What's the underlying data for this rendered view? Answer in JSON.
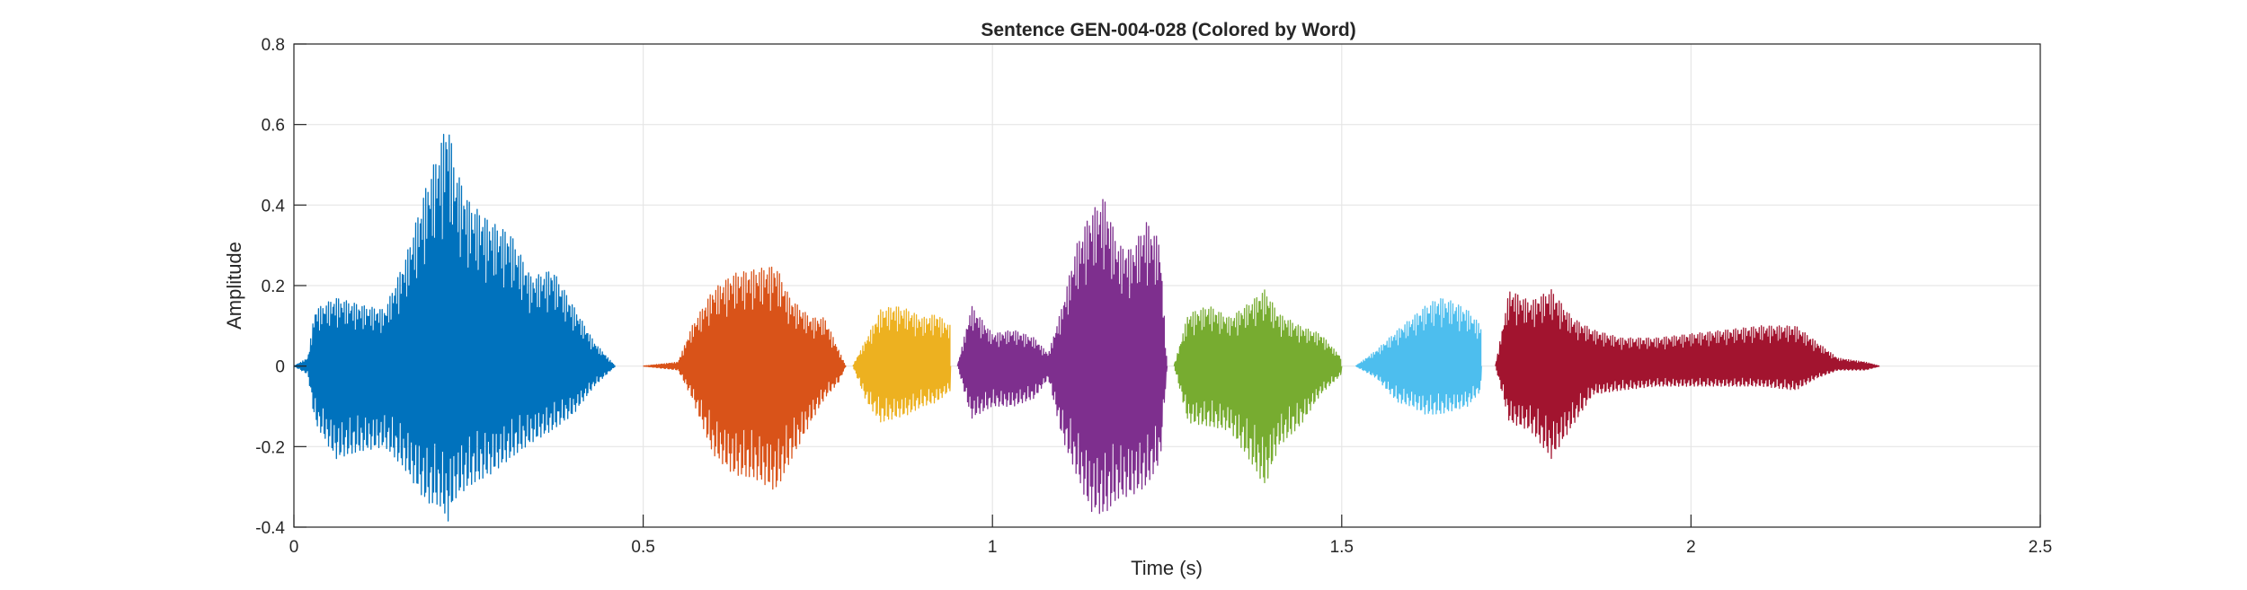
{
  "chart_data": {
    "type": "line",
    "title": "Sentence GEN-004-028 (Colored by Word)",
    "xlabel": "Time (s)",
    "ylabel": "Amplitude",
    "xlim": [
      0,
      2.5
    ],
    "ylim": [
      -0.4,
      0.8
    ],
    "xticks": [
      0,
      0.5,
      1,
      1.5,
      2,
      2.5
    ],
    "xtick_labels": [
      "0",
      "0.5",
      "1",
      "1.5",
      "2",
      "2.5"
    ],
    "yticks": [
      -0.4,
      -0.2,
      0,
      0.2,
      0.4,
      0.6,
      0.8
    ],
    "ytick_labels": [
      "-0.4",
      "-0.2",
      "0",
      "0.2",
      "0.4",
      "0.6",
      "0.8"
    ],
    "grid": true,
    "series": [
      {
        "color": "#0072BD",
        "x": [
          0.0,
          0.02,
          0.03,
          0.06,
          0.1,
          0.13,
          0.16,
          0.19,
          0.21,
          0.22,
          0.23,
          0.25,
          0.28,
          0.31,
          0.34,
          0.37,
          0.4,
          0.43,
          0.46
        ],
        "upper": [
          0.0,
          0.02,
          0.14,
          0.17,
          0.15,
          0.14,
          0.27,
          0.45,
          0.55,
          0.62,
          0.5,
          0.41,
          0.36,
          0.33,
          0.22,
          0.24,
          0.15,
          0.06,
          0.0
        ],
        "lower": [
          0.0,
          -0.02,
          -0.14,
          -0.23,
          -0.21,
          -0.2,
          -0.26,
          -0.34,
          -0.35,
          -0.39,
          -0.33,
          -0.3,
          -0.27,
          -0.23,
          -0.19,
          -0.16,
          -0.12,
          -0.05,
          0.0
        ]
      },
      {
        "color": "#D95319",
        "x": [
          0.5,
          0.55,
          0.57,
          0.6,
          0.63,
          0.66,
          0.69,
          0.71,
          0.74,
          0.76,
          0.78,
          0.79
        ],
        "upper": [
          0.0,
          0.01,
          0.1,
          0.19,
          0.23,
          0.24,
          0.25,
          0.17,
          0.12,
          0.12,
          0.04,
          0.0
        ],
        "lower": [
          0.0,
          -0.01,
          -0.08,
          -0.22,
          -0.27,
          -0.28,
          -0.31,
          -0.24,
          -0.14,
          -0.08,
          -0.04,
          0.0
        ]
      },
      {
        "color": "#EDB120",
        "x": [
          0.8,
          0.82,
          0.84,
          0.86,
          0.88,
          0.9,
          0.92,
          0.94
        ],
        "upper": [
          0.0,
          0.07,
          0.14,
          0.15,
          0.14,
          0.12,
          0.13,
          0.1
        ],
        "lower": [
          0.0,
          -0.09,
          -0.14,
          -0.13,
          -0.12,
          -0.1,
          -0.09,
          -0.06
        ]
      },
      {
        "color": "#7E2F8E",
        "x": [
          0.95,
          0.97,
          1.0,
          1.03,
          1.06,
          1.08,
          1.1,
          1.12,
          1.14,
          1.16,
          1.18,
          1.2,
          1.22,
          1.24,
          1.25
        ],
        "upper": [
          0.0,
          0.15,
          0.08,
          0.09,
          0.07,
          0.03,
          0.15,
          0.3,
          0.38,
          0.42,
          0.3,
          0.29,
          0.36,
          0.31,
          0.0
        ],
        "lower": [
          0.0,
          -0.13,
          -0.1,
          -0.1,
          -0.08,
          -0.03,
          -0.18,
          -0.27,
          -0.36,
          -0.37,
          -0.33,
          -0.32,
          -0.3,
          -0.24,
          0.0
        ]
      },
      {
        "color": "#77AC30",
        "x": [
          1.26,
          1.28,
          1.31,
          1.34,
          1.37,
          1.39,
          1.41,
          1.44,
          1.47,
          1.5
        ],
        "upper": [
          0.0,
          0.13,
          0.15,
          0.12,
          0.16,
          0.19,
          0.13,
          0.1,
          0.08,
          0.02
        ],
        "lower": [
          0.0,
          -0.14,
          -0.15,
          -0.16,
          -0.24,
          -0.3,
          -0.2,
          -0.15,
          -0.07,
          -0.02
        ]
      },
      {
        "color": "#4DBEEE",
        "x": [
          1.52,
          1.55,
          1.58,
          1.6,
          1.62,
          1.64,
          1.66,
          1.68,
          1.7
        ],
        "upper": [
          0.0,
          0.04,
          0.09,
          0.12,
          0.15,
          0.17,
          0.16,
          0.14,
          0.1
        ],
        "lower": [
          0.0,
          -0.03,
          -0.09,
          -0.1,
          -0.12,
          -0.12,
          -0.11,
          -0.1,
          -0.06
        ]
      },
      {
        "color": "#A2142F",
        "x": [
          1.72,
          1.74,
          1.77,
          1.8,
          1.83,
          1.86,
          1.9,
          1.95,
          2.0,
          2.05,
          2.1,
          2.15,
          2.18,
          2.21,
          2.25,
          2.27
        ],
        "upper": [
          0.0,
          0.19,
          0.16,
          0.19,
          0.12,
          0.09,
          0.07,
          0.07,
          0.08,
          0.09,
          0.1,
          0.1,
          0.06,
          0.02,
          0.01,
          0.0
        ],
        "lower": [
          0.0,
          -0.14,
          -0.16,
          -0.23,
          -0.15,
          -0.07,
          -0.06,
          -0.05,
          -0.05,
          -0.05,
          -0.05,
          -0.06,
          -0.03,
          -0.01,
          -0.01,
          0.0
        ]
      }
    ]
  }
}
